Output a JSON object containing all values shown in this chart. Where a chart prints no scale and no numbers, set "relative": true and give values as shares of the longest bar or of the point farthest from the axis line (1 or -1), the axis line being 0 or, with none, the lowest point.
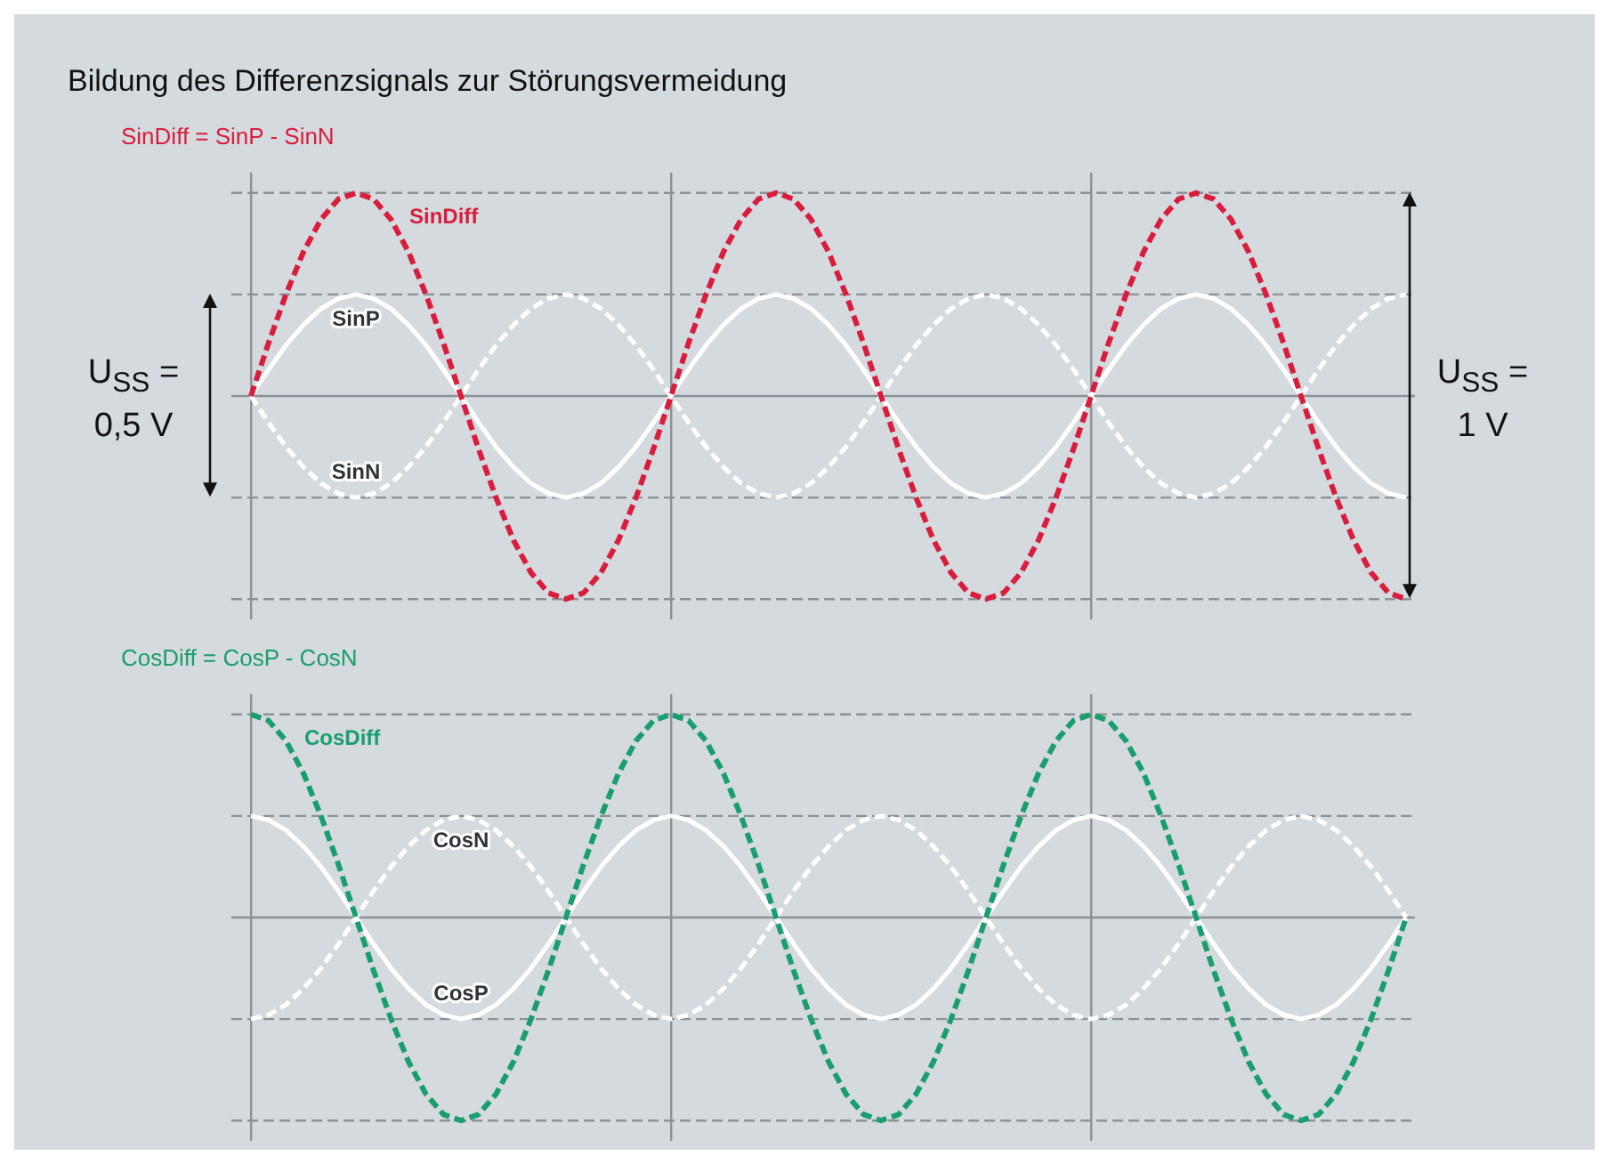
{
  "chart_data": [
    {
      "type": "line",
      "title": "Bildung des Differenzsignals zur Störungsvermeidung",
      "subtitle": "SinDiff = SinP - SinN",
      "relative": true,
      "tick_labels": false,
      "grid": "x",
      "categories": [
        null,
        null,
        null,
        null,
        null,
        null,
        null,
        null,
        null,
        null,
        null,
        null,
        null,
        null,
        null,
        null,
        null,
        null,
        null,
        null,
        null,
        null,
        null,
        null,
        null,
        null,
        null,
        null,
        null,
        null,
        null,
        null,
        null,
        null,
        null,
        null,
        null,
        null,
        null,
        null,
        null,
        null,
        null,
        null,
        null,
        null,
        null,
        null,
        null,
        null,
        null,
        null,
        null,
        null,
        null,
        null,
        null,
        null,
        null,
        null,
        null,
        null,
        null,
        null,
        null,
        null,
        null
      ],
      "series": [
        {
          "name": "SinDiff",
          "color": "#d81e3c",
          "line_style": "dashed",
          "values": [
            0,
            0.26,
            0.5,
            0.71,
            0.87,
            0.97,
            1,
            0.97,
            0.87,
            0.71,
            0.5,
            0.26,
            0,
            -0.26,
            -0.5,
            -0.71,
            -0.87,
            -0.97,
            -1,
            -0.97,
            -0.87,
            -0.71,
            -0.5,
            -0.26,
            0,
            0.26,
            0.5,
            0.71,
            0.87,
            0.97,
            1,
            0.97,
            0.87,
            0.71,
            0.5,
            0.26,
            0,
            -0.26,
            -0.5,
            -0.71,
            -0.87,
            -0.97,
            -1,
            -0.97,
            -0.87,
            -0.71,
            -0.5,
            -0.26,
            0,
            0.26,
            0.5,
            0.71,
            0.87,
            0.97,
            1,
            0.97,
            0.87,
            0.71,
            0.5,
            0.26,
            0,
            -0.26,
            -0.5,
            -0.71,
            -0.87,
            -0.97,
            -1
          ]
        },
        {
          "name": "SinP",
          "color": "#ffffff",
          "line_style": "solid",
          "values": [
            0,
            0.13,
            0.25,
            0.35,
            0.43,
            0.48,
            0.5,
            0.48,
            0.43,
            0.35,
            0.25,
            0.13,
            0,
            -0.13,
            -0.25,
            -0.35,
            -0.43,
            -0.48,
            -0.5,
            -0.48,
            -0.43,
            -0.35,
            -0.25,
            -0.13,
            0,
            0.13,
            0.25,
            0.35,
            0.43,
            0.48,
            0.5,
            0.48,
            0.43,
            0.35,
            0.25,
            0.13,
            0,
            -0.13,
            -0.25,
            -0.35,
            -0.43,
            -0.48,
            -0.5,
            -0.48,
            -0.43,
            -0.35,
            -0.25,
            -0.13,
            0,
            0.13,
            0.25,
            0.35,
            0.43,
            0.48,
            0.5,
            0.48,
            0.43,
            0.35,
            0.25,
            0.13,
            0,
            -0.13,
            -0.25,
            -0.35,
            -0.43,
            -0.48,
            -0.5
          ]
        },
        {
          "name": "SinN",
          "color": "#ffffff",
          "line_style": "dashed",
          "values": [
            0,
            -0.13,
            -0.25,
            -0.35,
            -0.43,
            -0.48,
            -0.5,
            -0.48,
            -0.43,
            -0.35,
            -0.25,
            -0.13,
            0,
            0.13,
            0.25,
            0.35,
            0.43,
            0.48,
            0.5,
            0.48,
            0.43,
            0.35,
            0.25,
            0.13,
            0,
            -0.13,
            -0.25,
            -0.35,
            -0.43,
            -0.48,
            -0.5,
            -0.48,
            -0.43,
            -0.35,
            -0.25,
            -0.13,
            0,
            0.13,
            0.25,
            0.35,
            0.43,
            0.48,
            0.5,
            0.48,
            0.43,
            0.35,
            0.25,
            0.13,
            0,
            -0.13,
            -0.25,
            -0.35,
            -0.43,
            -0.48,
            -0.5,
            -0.48,
            -0.43,
            -0.35,
            -0.25,
            -0.13,
            0,
            0.13,
            0.25,
            0.35,
            0.43,
            0.48,
            0.5
          ]
        }
      ],
      "ref_lines": [
        {
          "axis": "y",
          "value": 0,
          "color": "#8c9196",
          "line_style": "solid"
        },
        {
          "axis": "y",
          "value": 1,
          "color": "#8c9196",
          "line_style": "dashed"
        },
        {
          "axis": "y",
          "value": 0.5,
          "color": "#8c9196",
          "line_style": "dashed"
        },
        {
          "axis": "y",
          "value": -0.5,
          "color": "#8c9196",
          "line_style": "dashed"
        },
        {
          "axis": "y",
          "value": -1,
          "color": "#8c9196",
          "line_style": "dashed"
        }
      ],
      "annotations": [
        "U$_{SS}$ = 0,5 V",
        "U$_{SS}$ = 1 V"
      ]
    },
    {
      "type": "line",
      "subtitle": "CosDiff = CosP - CosN",
      "relative": true,
      "tick_labels": false,
      "grid": "x",
      "categories": [
        null,
        null,
        null,
        null,
        null,
        null,
        null,
        null,
        null,
        null,
        null,
        null,
        null,
        null,
        null,
        null,
        null,
        null,
        null,
        null,
        null,
        null,
        null,
        null,
        null,
        null,
        null,
        null,
        null,
        null,
        null,
        null,
        null,
        null,
        null,
        null,
        null,
        null,
        null,
        null,
        null,
        null,
        null,
        null,
        null,
        null,
        null,
        null,
        null,
        null,
        null,
        null,
        null,
        null,
        null,
        null,
        null,
        null,
        null,
        null,
        null,
        null,
        null,
        null,
        null,
        null,
        null
      ],
      "series": [
        {
          "name": "CosDiff",
          "color": "#1a9e6e",
          "line_style": "dashed",
          "values": [
            1,
            0.97,
            0.87,
            0.71,
            0.5,
            0.26,
            0,
            -0.26,
            -0.5,
            -0.71,
            -0.87,
            -0.97,
            -1,
            -0.97,
            -0.87,
            -0.71,
            -0.5,
            -0.26,
            0,
            0.26,
            0.5,
            0.71,
            0.87,
            0.97,
            1,
            0.97,
            0.87,
            0.71,
            0.5,
            0.26,
            0,
            -0.26,
            -0.5,
            -0.71,
            -0.87,
            -0.97,
            -1,
            -0.97,
            -0.87,
            -0.71,
            -0.5,
            -0.26,
            0,
            0.26,
            0.5,
            0.71,
            0.87,
            0.97,
            1,
            0.97,
            0.87,
            0.71,
            0.5,
            0.26,
            0,
            -0.26,
            -0.5,
            -0.71,
            -0.87,
            -0.97,
            -1,
            -0.97,
            -0.87,
            -0.71,
            -0.5,
            -0.26,
            0
          ]
        },
        {
          "name": "CosP",
          "color": "#ffffff",
          "line_style": "solid",
          "values": [
            0.5,
            0.48,
            0.43,
            0.35,
            0.25,
            0.13,
            0,
            -0.13,
            -0.25,
            -0.35,
            -0.43,
            -0.48,
            -0.5,
            -0.48,
            -0.43,
            -0.35,
            -0.25,
            -0.13,
            0,
            0.13,
            0.25,
            0.35,
            0.43,
            0.48,
            0.5,
            0.48,
            0.43,
            0.35,
            0.25,
            0.13,
            0,
            -0.13,
            -0.25,
            -0.35,
            -0.43,
            -0.48,
            -0.5,
            -0.48,
            -0.43,
            -0.35,
            -0.25,
            -0.13,
            0,
            0.13,
            0.25,
            0.35,
            0.43,
            0.48,
            0.5,
            0.48,
            0.43,
            0.35,
            0.25,
            0.13,
            0,
            -0.13,
            -0.25,
            -0.35,
            -0.43,
            -0.48,
            -0.5,
            -0.48,
            -0.43,
            -0.35,
            -0.25,
            -0.13,
            0
          ]
        },
        {
          "name": "CosN",
          "color": "#ffffff",
          "line_style": "dashed",
          "values": [
            -0.5,
            -0.48,
            -0.43,
            -0.35,
            -0.25,
            -0.13,
            0,
            0.13,
            0.25,
            0.35,
            0.43,
            0.48,
            0.5,
            0.48,
            0.43,
            0.35,
            0.25,
            0.13,
            0,
            -0.13,
            -0.25,
            -0.35,
            -0.43,
            -0.48,
            -0.5,
            -0.48,
            -0.43,
            -0.35,
            -0.25,
            -0.13,
            0,
            0.13,
            0.25,
            0.35,
            0.43,
            0.48,
            0.5,
            0.48,
            0.43,
            0.35,
            0.25,
            0.13,
            0,
            -0.13,
            -0.25,
            -0.35,
            -0.43,
            -0.48,
            -0.5,
            -0.48,
            -0.43,
            -0.35,
            -0.25,
            -0.13,
            0,
            0.13,
            0.25,
            0.35,
            0.43,
            0.48,
            0.5,
            0.48,
            0.43,
            0.35,
            0.25,
            0.13,
            0
          ]
        }
      ],
      "ref_lines": [
        {
          "axis": "y",
          "value": 0,
          "color": "#8c9196",
          "line_style": "solid"
        },
        {
          "axis": "y",
          "value": 1,
          "color": "#8c9196",
          "line_style": "dashed"
        },
        {
          "axis": "y",
          "value": 0.5,
          "color": "#8c9196",
          "line_style": "dashed"
        },
        {
          "axis": "y",
          "value": -0.5,
          "color": "#8c9196",
          "line_style": "dashed"
        },
        {
          "axis": "y",
          "value": -1,
          "color": "#8c9196",
          "line_style": "dashed"
        }
      ]
    }
  ]
}
